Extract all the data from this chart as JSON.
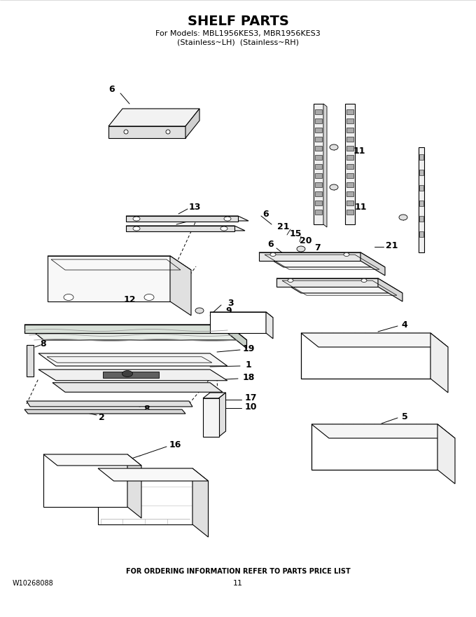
{
  "title": "SHELF PARTS",
  "subtitle1": "For Models: MBL1956KES3, MBR1956KES3",
  "subtitle2": "(Stainless~LH)  (Stainless~RH)",
  "footer_center": "FOR ORDERING INFORMATION REFER TO PARTS PRICE LIST",
  "footer_left": "W10268088",
  "footer_page": "11",
  "bg_color": "#ffffff"
}
